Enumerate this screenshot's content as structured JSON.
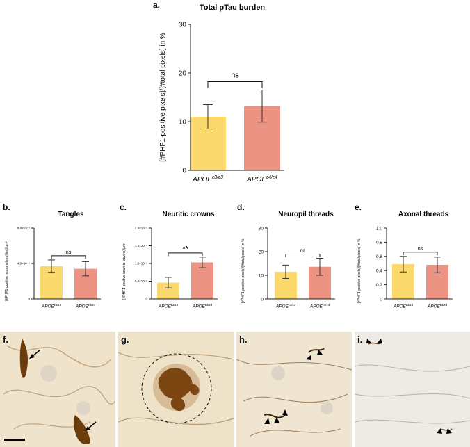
{
  "colors": {
    "e3": "#fbd96c",
    "e4": "#ec9384",
    "axis": "#222222",
    "tissue": "#efe5d3",
    "stain": "#7a4a14"
  },
  "panels": {
    "a": {
      "letter": "a.",
      "title": "Total pTau burden",
      "ylabel": "[#PHF1-positive pixels]/[#total pixels] in %",
      "sig": "ns"
    },
    "b": {
      "letter": "b.",
      "title": "Tangles",
      "ylabel": "[#PHF1-positive neuronal profiles]/µm²",
      "sig": "ns"
    },
    "c": {
      "letter": "c.",
      "title": "Neuritic crowns",
      "ylabel": "[#PHF1-positive neuritic crowns]/µm²",
      "sig": "**"
    },
    "d": {
      "letter": "d.",
      "title": "Neuropil threads",
      "ylabel": "[#PHF1-positive pixels]/[#total pixels] in %",
      "sig": "ns"
    },
    "e": {
      "letter": "e.",
      "title": "Axonal threads",
      "ylabel": "[#PHF1-positive pixels]/[#total pixels] in %",
      "sig": "ns"
    }
  },
  "micrographs": [
    {
      "letter": "f.",
      "icon": "arrow-icon"
    },
    {
      "letter": "g.",
      "icon": "dashed-circle-icon"
    },
    {
      "letter": "h.",
      "icon": "arrowhead-icon"
    },
    {
      "letter": "i.",
      "icon": "arrowhead-icon"
    }
  ],
  "chart_data": [
    {
      "id": "a",
      "type": "bar",
      "title": "Total pTau burden",
      "ylabel": "[#PHF1-positive pixels]/[#total pixels] in %",
      "categories": [
        "APOEε3/ε3",
        "APOEε4/ε4"
      ],
      "values": [
        11,
        13.2
      ],
      "errors": [
        2.5,
        3.3
      ],
      "ylim": [
        0,
        30
      ],
      "ticks": [
        0,
        10,
        20,
        30
      ],
      "tick_labels": [
        "0",
        "10",
        "20",
        "30"
      ],
      "significance": "ns"
    },
    {
      "id": "b",
      "type": "bar",
      "title": "Tangles",
      "ylabel": "[#PHF1-positive neuronal profiles]/µm²",
      "categories": [
        "APOEε3/ε3",
        "APOEε4/ε4"
      ],
      "values": [
        3.7e-06,
        3.4e-06
      ],
      "errors": [
        7e-07,
        8e-07
      ],
      "ylim": [
        0,
        8e-06
      ],
      "ticks": [
        0,
        4e-06,
        8e-06
      ],
      "tick_labels": [
        "0",
        "4.0×10⁻⁶",
        "8.0×10⁻⁶"
      ],
      "significance": "ns"
    },
    {
      "id": "c",
      "type": "bar",
      "title": "Neuritic crowns",
      "ylabel": "[#PHF1-positive neuritic crowns]/µm²",
      "categories": [
        "APOEε3/ε3",
        "APOEε4/ε4"
      ],
      "values": [
        4.6e-06,
        1.03e-05
      ],
      "errors": [
        1.5e-06,
        1.5e-06
      ],
      "ylim": [
        0,
        2e-05
      ],
      "ticks": [
        0,
        5e-06,
        1e-05,
        1.5e-05,
        2e-05
      ],
      "tick_labels": [
        "0",
        "5.0×10⁻⁶",
        "1.0×10⁻⁵",
        "1.5×10⁻⁵",
        "2.0×10⁻⁵"
      ],
      "significance": "**"
    },
    {
      "id": "d",
      "type": "bar",
      "title": "Neuropil threads",
      "ylabel": "[#PHF1-positive pixels]/[#total pixels] in %",
      "categories": [
        "APOEε3/ε3",
        "APOEε4/ε4"
      ],
      "values": [
        11.5,
        13.6
      ],
      "errors": [
        2.8,
        3.6
      ],
      "ylim": [
        0,
        30
      ],
      "ticks": [
        0,
        10,
        20,
        30
      ],
      "tick_labels": [
        "0",
        "10",
        "20",
        "30"
      ],
      "significance": "ns"
    },
    {
      "id": "e",
      "type": "bar",
      "title": "Axonal threads",
      "ylabel": "[#PHF1-positive pixels]/[#total pixels] in %",
      "categories": [
        "APOEε3/ε3",
        "APOEε4/ε4"
      ],
      "values": [
        0.49,
        0.48
      ],
      "errors": [
        0.11,
        0.11
      ],
      "ylim": [
        0,
        1.0
      ],
      "ticks": [
        0,
        0.2,
        0.4,
        0.6,
        0.8,
        1.0
      ],
      "tick_labels": [
        "0",
        "0.2",
        "0.4",
        "0.6",
        "0.8",
        "1.0"
      ],
      "significance": "ns"
    }
  ]
}
